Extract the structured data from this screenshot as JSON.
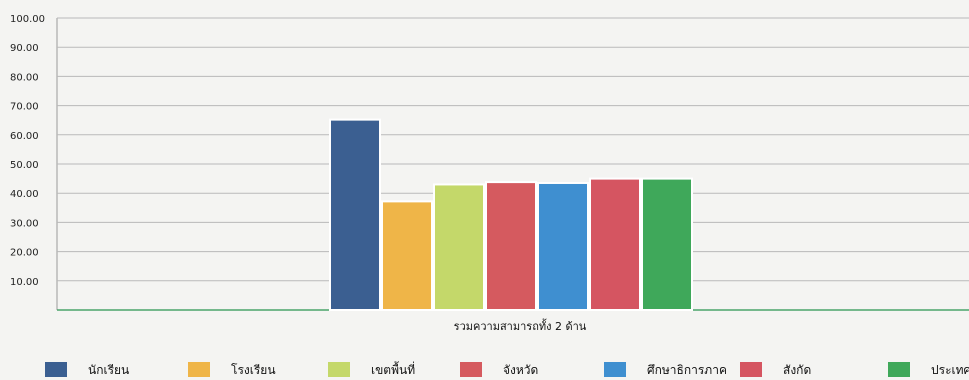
{
  "chart_data": {
    "type": "bar",
    "categories": [
      "รวมความสามารถทั้ง 2 ด้าน"
    ],
    "series": [
      {
        "name": "นักเรียน",
        "values": [
          65.2
        ],
        "color": "#3b5f91"
      },
      {
        "name": "โรงเรียน",
        "values": [
          37.2
        ],
        "color": "#efb548"
      },
      {
        "name": "เขตพื้นที่",
        "values": [
          43.0
        ],
        "color": "#c4d86a"
      },
      {
        "name": "จังหวัด",
        "values": [
          43.8
        ],
        "color": "#d55a5f"
      },
      {
        "name": "ศึกษาธิการภาค",
        "values": [
          43.5
        ],
        "color": "#3f8fd0"
      },
      {
        "name": "สังกัด",
        "values": [
          45.0
        ],
        "color": "#d55561"
      },
      {
        "name": "ประเทศ",
        "values": [
          45.0
        ],
        "color": "#3fa85a"
      }
    ],
    "ylim": [
      0,
      100
    ],
    "yticks": [
      "10.00",
      "20.00",
      "30.00",
      "40.00",
      "50.00",
      "60.00",
      "70.00",
      "80.00",
      "90.00",
      "100.00"
    ],
    "grid": true,
    "legend_position": "bottom"
  }
}
